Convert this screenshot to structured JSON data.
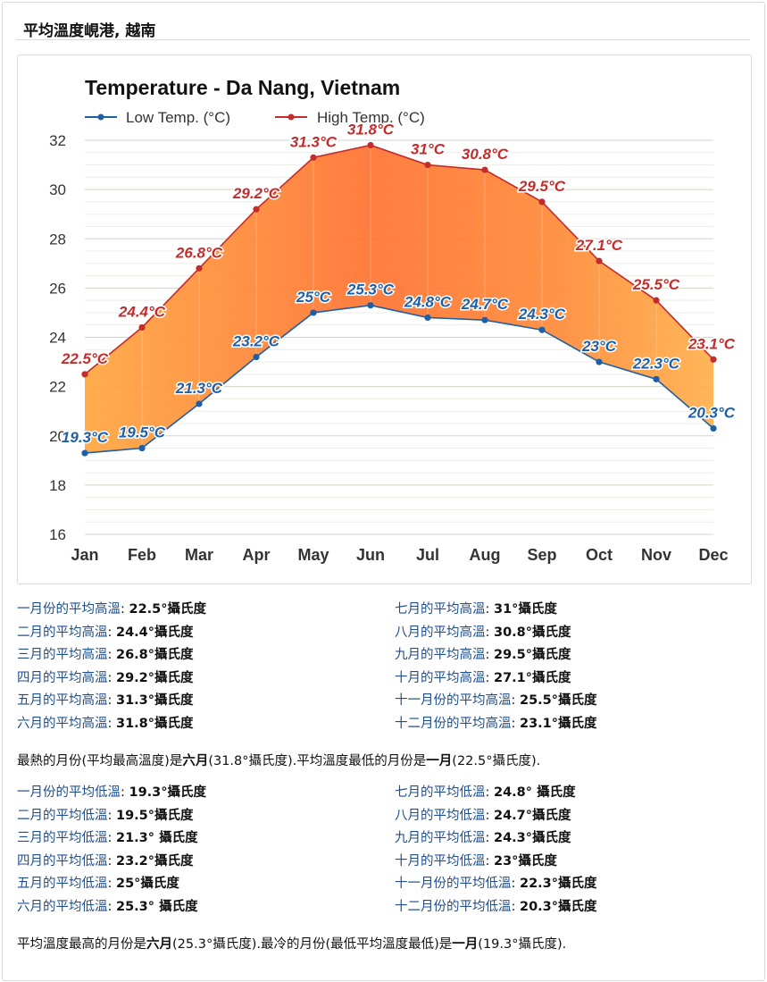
{
  "page": {
    "title": "平均溫度峴港, 越南"
  },
  "chart_data": {
    "type": "area",
    "title": "Temperature - Da Nang, Vietnam",
    "categories": [
      "Jan",
      "Feb",
      "Mar",
      "Apr",
      "May",
      "Jun",
      "Jul",
      "Aug",
      "Sep",
      "Oct",
      "Nov",
      "Dec"
    ],
    "series": [
      {
        "name": "Low Temp. (°C)",
        "color": "#1f5fa6",
        "values": [
          19.3,
          19.5,
          21.3,
          23.2,
          25,
          25.3,
          24.8,
          24.7,
          24.3,
          23,
          22.3,
          20.3
        ],
        "labels": [
          "19.3°C",
          "19.5°C",
          "21.3°C",
          "23.2°C",
          "25°C",
          "25.3°C",
          "24.8°C",
          "24.7°C",
          "24.3°C",
          "23°C",
          "22.3°C",
          "20.3°C"
        ]
      },
      {
        "name": "High Temp. (°C)",
        "color": "#c42b2b",
        "values": [
          22.5,
          24.4,
          26.8,
          29.2,
          31.3,
          31.8,
          31,
          30.8,
          29.5,
          27.1,
          25.5,
          23.1
        ],
        "labels": [
          "22.5°C",
          "24.4°C",
          "26.8°C",
          "29.2°C",
          "31.3°C",
          "31.8°C",
          "31°C",
          "30.8°C",
          "29.5°C",
          "27.1°C",
          "25.5°C",
          "23.1°C"
        ]
      }
    ],
    "yticks": [
      "16",
      "18",
      "20",
      "22",
      "24",
      "26",
      "28",
      "30",
      "32"
    ],
    "ylim": [
      16,
      32
    ],
    "grid": true,
    "legend_position": "top-left"
  },
  "high_list": {
    "left": [
      {
        "label": "一月份的平均高溫",
        "value": "22.5°攝氏度"
      },
      {
        "label": "二月的平均高溫",
        "value": "24.4°攝氏度"
      },
      {
        "label": "三月的平均高溫",
        "value": "26.8°攝氏度"
      },
      {
        "label": "四月的平均高溫",
        "value": "29.2°攝氏度"
      },
      {
        "label": "五月的平均高溫",
        "value": "31.3°攝氏度"
      },
      {
        "label": "六月的平均高溫",
        "value": "31.8°攝氏度"
      }
    ],
    "right": [
      {
        "label": "七月的平均高溫",
        "value": "31°攝氏度"
      },
      {
        "label": "八月的平均高溫",
        "value": "30.8°攝氏度"
      },
      {
        "label": "九月的平均高溫",
        "value": "29.5°攝氏度"
      },
      {
        "label": "十月的平均高溫",
        "value": "27.1°攝氏度"
      },
      {
        "label": "十一月份的平均高溫",
        "value": "25.5°攝氏度"
      },
      {
        "label": "十二月份的平均高溫",
        "value": "23.1°攝氏度"
      }
    ]
  },
  "high_summary": {
    "t1": "最熱的月份(平均最高溫度)是",
    "b1": "六月",
    "t2": "(31.8°攝氏度).平均溫度最低的月份是",
    "b2": "一月",
    "t3": "(22.5°攝氏度)."
  },
  "low_list": {
    "left": [
      {
        "label": "一月份的平均低溫",
        "value": "19.3°攝氏度"
      },
      {
        "label": "二月的平均低溫",
        "value": "19.5°攝氏度"
      },
      {
        "label": "三月的平均低溫",
        "value": "21.3° 攝氏度"
      },
      {
        "label": "四月的平均低溫",
        "value": "23.2°攝氏度"
      },
      {
        "label": "五月的平均低溫",
        "value": "25°攝氏度"
      },
      {
        "label": "六月的平均低溫",
        "value": "25.3° 攝氏度"
      }
    ],
    "right": [
      {
        "label": "七月的平均低溫",
        "value": "24.8° 攝氏度"
      },
      {
        "label": "八月的平均低溫",
        "value": "24.7°攝氏度"
      },
      {
        "label": "九月的平均低溫",
        "value": "24.3°攝氏度"
      },
      {
        "label": "十月的平均低溫",
        "value": "23°攝氏度"
      },
      {
        "label": "十一月份的平均低溫",
        "value": "22.3°攝氏度"
      },
      {
        "label": "十二月份的平均低溫",
        "value": "20.3°攝氏度"
      }
    ]
  },
  "low_summary": {
    "t1": "平均溫度最高的月份是",
    "b1": "六月",
    "t2": "(25.3°攝氏度).最冷的月份(最低平均溫度最低)是",
    "b2": "一月",
    "t3": "(19.3°攝氏度)."
  }
}
